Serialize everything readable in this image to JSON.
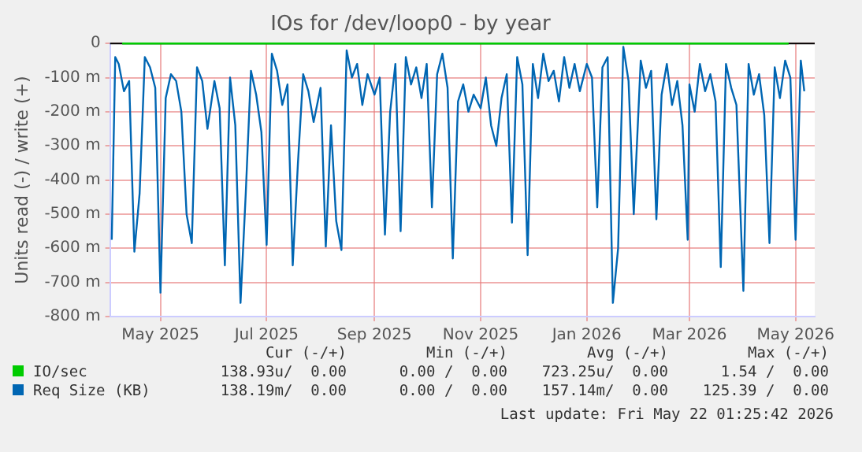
{
  "chart_data": {
    "type": "line",
    "title": "IOs for /dev/loop0 - by year",
    "ylabel": "Units read (-) / write (+)",
    "xlim": [
      "2025-04-02",
      "2026-05-12"
    ],
    "xticks": [
      {
        "value": "2025-05-01",
        "label": "May 2025"
      },
      {
        "value": "2025-07-01",
        "label": "Jul 2025"
      },
      {
        "value": "2025-09-01",
        "label": "Sep 2025"
      },
      {
        "value": "2025-11-01",
        "label": "Nov 2025"
      },
      {
        "value": "2026-01-01",
        "label": "Jan 2026"
      },
      {
        "value": "2026-03-01",
        "label": "Mar 2026"
      },
      {
        "value": "2026-05-01",
        "label": "May 2026"
      }
    ],
    "ylim": [
      -800,
      0
    ],
    "yticks": [
      {
        "value": -800,
        "label": "-800 m"
      },
      {
        "value": -700,
        "label": "-700 m"
      },
      {
        "value": -600,
        "label": "-600 m"
      },
      {
        "value": -500,
        "label": "-500 m"
      },
      {
        "value": -400,
        "label": "-400 m"
      },
      {
        "value": -300,
        "label": "-300 m"
      },
      {
        "value": -200,
        "label": "-200 m"
      },
      {
        "value": -100,
        "label": "-100 m"
      },
      0
    ],
    "grid": true,
    "legend": "bottom",
    "marker": "none",
    "line_style": "solid",
    "ref_lines": [
      {
        "axis": "y",
        "value": 0,
        "color": "#000000"
      }
    ],
    "annotations": [
      "Cur (-/+)",
      "Min (-/+)",
      "Avg (-/+)",
      "Max (-/+)",
      "138.93u/  0.00",
      "0.00 /  0.00",
      "723.25u/  0.00",
      "1.54 /  0.00",
      "138.19m/  0.00",
      "0.00 /  0.00",
      "157.14m/  0.00",
      "125.39 /  0.00",
      "Last update: Fri May 22 01:25:42 2026"
    ],
    "series": [
      {
        "name": "IO/sec",
        "color": "#00cc00",
        "x": [
          "2025-04-09",
          "2026-04-27"
        ],
        "values": [
          0,
          0
        ]
      },
      {
        "name": "Req Size (KB)",
        "color": "#0066b3",
        "x": [
          "2025-04-03",
          "2025-04-05",
          "2025-04-07",
          "2025-04-10",
          "2025-04-13",
          "2025-04-16",
          "2025-04-19",
          "2025-04-22",
          "2025-04-25",
          "2025-04-28",
          "2025-05-01",
          "2025-05-04",
          "2025-05-07",
          "2025-05-10",
          "2025-05-13",
          "2025-05-16",
          "2025-05-19",
          "2025-05-22",
          "2025-05-25",
          "2025-05-28",
          "2025-06-01",
          "2025-06-04",
          "2025-06-07",
          "2025-06-10",
          "2025-06-13",
          "2025-06-16",
          "2025-06-19",
          "2025-06-22",
          "2025-06-25",
          "2025-06-28",
          "2025-07-01",
          "2025-07-04",
          "2025-07-07",
          "2025-07-10",
          "2025-07-13",
          "2025-07-16",
          "2025-07-19",
          "2025-07-22",
          "2025-07-25",
          "2025-07-28",
          "2025-08-01",
          "2025-08-04",
          "2025-08-07",
          "2025-08-10",
          "2025-08-13",
          "2025-08-16",
          "2025-08-19",
          "2025-08-22",
          "2025-08-25",
          "2025-08-28",
          "2025-09-01",
          "2025-09-04",
          "2025-09-07",
          "2025-09-10",
          "2025-09-13",
          "2025-09-16",
          "2025-09-19",
          "2025-09-22",
          "2025-09-25",
          "2025-09-28",
          "2025-10-01",
          "2025-10-04",
          "2025-10-07",
          "2025-10-10",
          "2025-10-13",
          "2025-10-16",
          "2025-10-19",
          "2025-10-22",
          "2025-10-25",
          "2025-10-28",
          "2025-11-01",
          "2025-11-04",
          "2025-11-07",
          "2025-11-10",
          "2025-11-13",
          "2025-11-16",
          "2025-11-19",
          "2025-11-22",
          "2025-11-25",
          "2025-11-28",
          "2025-12-01",
          "2025-12-04",
          "2025-12-07",
          "2025-12-10",
          "2025-12-13",
          "2025-12-16",
          "2025-12-19",
          "2025-12-22",
          "2025-12-25",
          "2025-12-28",
          "2026-01-01",
          "2026-01-04",
          "2026-01-07",
          "2026-01-10",
          "2026-01-13",
          "2026-01-16",
          "2026-01-19",
          "2026-01-22",
          "2026-01-25",
          "2026-01-28",
          "2026-02-01",
          "2026-02-04",
          "2026-02-07",
          "2026-02-10",
          "2026-02-13",
          "2026-02-16",
          "2026-02-19",
          "2026-02-22",
          "2026-02-25",
          "2026-02-28",
          "2026-03-01",
          "2026-03-04",
          "2026-03-07",
          "2026-03-10",
          "2026-03-13",
          "2026-03-16",
          "2026-03-19",
          "2026-03-22",
          "2026-03-25",
          "2026-03-28",
          "2026-04-01",
          "2026-04-04",
          "2026-04-07",
          "2026-04-10",
          "2026-04-13",
          "2026-04-16",
          "2026-04-19",
          "2026-04-22",
          "2026-04-25",
          "2026-04-28",
          "2026-05-01",
          "2026-05-04",
          "2026-05-06"
        ],
        "values": [
          -575,
          -40,
          -60,
          -140,
          -110,
          -610,
          -440,
          -40,
          -70,
          -130,
          -730,
          -160,
          -90,
          -110,
          -200,
          -500,
          -585,
          -70,
          -110,
          -250,
          -110,
          -190,
          -650,
          -100,
          -240,
          -760,
          -440,
          -80,
          -150,
          -260,
          -590,
          -30,
          -80,
          -180,
          -120,
          -650,
          -350,
          -90,
          -140,
          -230,
          -130,
          -595,
          -240,
          -520,
          -605,
          -20,
          -100,
          -60,
          -180,
          -90,
          -150,
          -100,
          -560,
          -200,
          -60,
          -550,
          -40,
          -120,
          -70,
          -160,
          -60,
          -480,
          -90,
          -30,
          -130,
          -630,
          -170,
          -120,
          -200,
          -150,
          -190,
          -100,
          -240,
          -300,
          -160,
          -90,
          -525,
          -40,
          -120,
          -620,
          -60,
          -160,
          -30,
          -110,
          -80,
          -170,
          -40,
          -130,
          -60,
          -140,
          -60,
          -100,
          -480,
          -70,
          -40,
          -760,
          -600,
          -10,
          -110,
          -500,
          -50,
          -130,
          -80,
          -515,
          -150,
          -60,
          -180,
          -110,
          -240,
          -575,
          -120,
          -200,
          -60,
          -140,
          -90,
          -170,
          -655,
          -60,
          -130,
          -180,
          -725,
          -60,
          -150,
          -90,
          -210,
          -585,
          -70,
          -160,
          -50,
          -100,
          -575,
          -50,
          -140
        ]
      }
    ]
  }
}
